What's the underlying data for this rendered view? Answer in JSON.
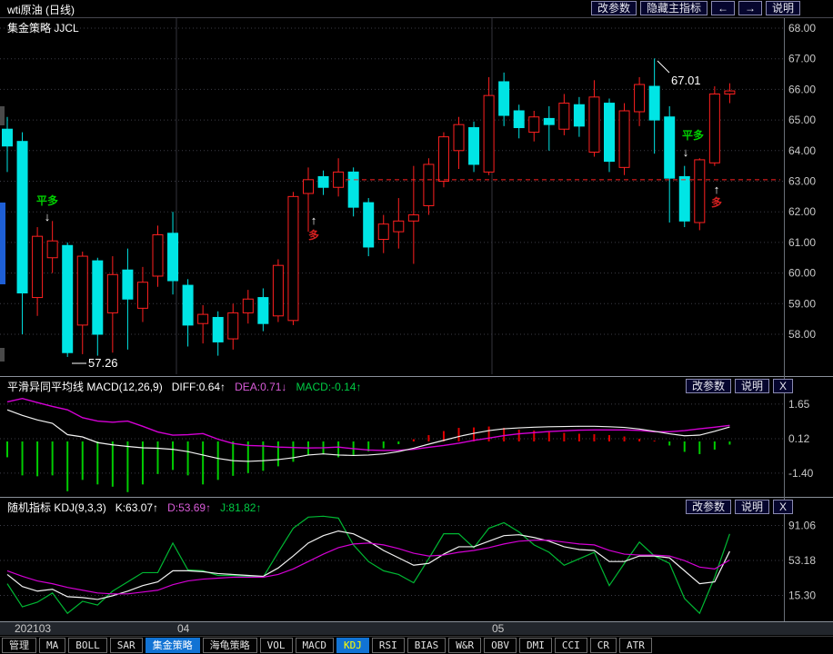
{
  "window": {
    "title": "wti原油 (日线)",
    "subtitle": "集金策略 JJCL"
  },
  "top_buttons": [
    {
      "label": "改参数"
    },
    {
      "label": "隐藏主指标"
    },
    {
      "label": "←"
    },
    {
      "label": "→"
    },
    {
      "label": "说明"
    }
  ],
  "macd_panel": {
    "title": "平滑异同平均线 MACD(12,26,9)",
    "diff_label": "DIFF:0.64↑",
    "dea_label": "DEA:0.71↓",
    "macd_label": "MACD:-0.14↑",
    "buttons": [
      "改参数",
      "说明",
      "X"
    ]
  },
  "kdj_panel": {
    "title": "随机指标 KDJ(9,3,3)",
    "k_label": "K:63.07↑",
    "d_label": "D:53.69↑",
    "j_label": "J:81.82↑",
    "buttons": [
      "改参数",
      "说明",
      "X"
    ]
  },
  "timeline": {
    "labels": [
      {
        "text": "202103",
        "x": 16
      },
      {
        "text": "04",
        "x": 195
      },
      {
        "text": "05",
        "x": 541
      }
    ]
  },
  "toolbar": {
    "items": [
      {
        "label": "管理"
      },
      {
        "label": "MA"
      },
      {
        "label": "BOLL"
      },
      {
        "label": "SAR"
      },
      {
        "label": "集金策略",
        "active": true
      },
      {
        "label": "海龟策略"
      },
      {
        "label": "VOL"
      },
      {
        "label": "MACD"
      },
      {
        "label": "KDJ",
        "active": true,
        "text_color": "#ffff00"
      },
      {
        "label": "RSI"
      },
      {
        "label": "BIAS"
      },
      {
        "label": "W&R"
      },
      {
        "label": "OBV"
      },
      {
        "label": "DMI"
      },
      {
        "label": "CCI"
      },
      {
        "label": "CR"
      },
      {
        "label": "ATR"
      }
    ]
  },
  "colors": {
    "up": "#ff2020",
    "down": "#00e5e5",
    "diff_line": "#f2f2f2",
    "dea_line": "#d400d4",
    "hist_pos": "#e00000",
    "hist_neg": "#00cc00",
    "k_line": "#f2f2f2",
    "d_line": "#d400d4",
    "j_line": "#00b833",
    "grid": "#3c3c46",
    "month_line": "#34343c",
    "axis_text": "#c8c8c8",
    "divider": "#8a9099",
    "signal_green": "#00cc00",
    "signal_red": "#d42020",
    "dashed_line": "#ff2020",
    "scroll_thumb": "#1e5fd6",
    "scroll_mark": "#4a4a4a"
  },
  "left_scrollbar": [
    {
      "y": 117,
      "h": 21,
      "kind": "mark"
    },
    {
      "y": 223,
      "h": 90,
      "kind": "thumb"
    },
    {
      "y": 383,
      "h": 15,
      "kind": "mark"
    }
  ],
  "chart_data": [
    {
      "type": "candlestick",
      "title": "wti原油 (日线)",
      "y_ticks": [
        "68.00",
        "67.00",
        "66.00",
        "65.00",
        "64.00",
        "63.00",
        "62.00",
        "61.00",
        "60.00",
        "59.00",
        "58.00"
      ],
      "y_tick_values": [
        68,
        67,
        66,
        65,
        64,
        63,
        62,
        61,
        60,
        59,
        58
      ],
      "x_tick_labels": [
        "202103",
        "04",
        "05"
      ],
      "month_lines_x": [
        194,
        541
      ],
      "ohlc": [
        [
          64.7,
          65.1,
          63.3,
          64.15
        ],
        [
          64.3,
          64.6,
          58.0,
          59.35
        ],
        [
          59.2,
          61.5,
          58.6,
          61.2
        ],
        [
          60.5,
          61.7,
          60.0,
          61.05
        ],
        [
          60.9,
          61.0,
          57.26,
          57.4
        ],
        [
          58.3,
          60.7,
          57.35,
          60.55
        ],
        [
          60.4,
          60.5,
          57.3,
          58.0
        ],
        [
          58.7,
          60.55,
          57.4,
          59.95
        ],
        [
          60.1,
          60.8,
          57.5,
          59.15
        ],
        [
          58.85,
          60.2,
          58.4,
          59.7
        ],
        [
          59.9,
          61.55,
          59.55,
          61.25
        ],
        [
          61.3,
          62.0,
          59.3,
          59.75
        ],
        [
          59.6,
          59.8,
          57.6,
          58.3
        ],
        [
          58.35,
          58.95,
          57.7,
          58.65
        ],
        [
          58.55,
          58.75,
          57.3,
          57.75
        ],
        [
          57.85,
          59.0,
          57.5,
          58.7
        ],
        [
          58.7,
          59.45,
          58.35,
          59.15
        ],
        [
          59.2,
          59.5,
          58.1,
          58.35
        ],
        [
          58.6,
          60.45,
          58.4,
          60.25
        ],
        [
          58.45,
          62.65,
          58.3,
          62.5
        ],
        [
          62.6,
          63.45,
          61.35,
          63.05
        ],
        [
          63.15,
          63.35,
          62.55,
          62.8
        ],
        [
          62.8,
          63.75,
          62.5,
          63.3
        ],
        [
          63.3,
          63.45,
          61.85,
          62.15
        ],
        [
          62.3,
          62.45,
          60.55,
          60.85
        ],
        [
          61.1,
          61.9,
          60.65,
          61.6
        ],
        [
          61.35,
          62.45,
          60.8,
          61.7
        ],
        [
          61.7,
          63.5,
          60.3,
          61.9
        ],
        [
          62.2,
          63.75,
          61.9,
          63.55
        ],
        [
          63.0,
          64.6,
          62.8,
          64.45
        ],
        [
          64.0,
          65.1,
          63.4,
          64.85
        ],
        [
          64.75,
          64.95,
          63.3,
          63.55
        ],
        [
          63.3,
          66.4,
          63.2,
          65.8
        ],
        [
          66.25,
          66.55,
          64.8,
          65.15
        ],
        [
          65.3,
          65.5,
          64.4,
          64.75
        ],
        [
          64.6,
          65.3,
          64.3,
          65.1
        ],
        [
          65.05,
          65.45,
          64.0,
          64.85
        ],
        [
          64.7,
          65.85,
          64.5,
          65.55
        ],
        [
          65.5,
          65.75,
          64.45,
          64.8
        ],
        [
          63.95,
          66.3,
          63.8,
          65.75
        ],
        [
          65.55,
          65.7,
          63.3,
          63.65
        ],
        [
          63.45,
          65.55,
          63.2,
          65.3
        ],
        [
          65.27,
          66.4,
          64.8,
          66.16
        ],
        [
          66.1,
          67.01,
          63.9,
          65.0
        ],
        [
          65.1,
          65.45,
          61.65,
          63.1
        ],
        [
          63.15,
          63.5,
          61.5,
          61.7
        ],
        [
          61.65,
          63.75,
          61.4,
          63.7
        ],
        [
          63.6,
          66.1,
          63.5,
          65.85
        ],
        [
          65.85,
          66.2,
          65.55,
          65.95
        ]
      ],
      "signal_line": {
        "price": 63.05,
        "x1": 380,
        "x2": 858
      },
      "annotations": [
        {
          "kind": "signal",
          "label": "平多",
          "color": "green",
          "arrow": "down",
          "x": 52,
          "ax": 52,
          "label_y": 225,
          "arrow_y": 243
        },
        {
          "kind": "signal",
          "label": "多",
          "color": "red",
          "arrow": "up",
          "x": 345,
          "ax": 345,
          "label_y": 263,
          "arrow_y": 247
        },
        {
          "kind": "signal",
          "label": "平多",
          "color": "green",
          "arrow": "down",
          "x": 762,
          "ax": 754,
          "label_y": 153,
          "arrow_y": 172
        },
        {
          "kind": "signal",
          "label": "多",
          "color": "red",
          "arrow": "up",
          "x": 788,
          "ax": 788,
          "label_y": 227,
          "arrow_y": 213
        },
        {
          "kind": "price-low",
          "label": "57.26",
          "x": 97,
          "y": 404,
          "line": [
            79,
            95,
            400
          ]
        },
        {
          "kind": "price-high",
          "label": "67.01",
          "x": 738,
          "y": 93,
          "line": [
            723,
            67,
            736,
            80
          ]
        }
      ]
    },
    {
      "type": "bar+line",
      "name": "MACD",
      "params": "12,26,9",
      "y_ticks": [
        "1.65",
        "0.12",
        "-1.40"
      ],
      "y_tick_values": [
        1.65,
        0.12,
        -1.4
      ],
      "diff": [
        1.4,
        1.15,
        0.95,
        0.8,
        0.3,
        0.2,
        -0.05,
        -0.15,
        -0.22,
        -0.28,
        -0.3,
        -0.35,
        -0.45,
        -0.6,
        -0.75,
        -0.85,
        -0.88,
        -0.85,
        -0.8,
        -0.72,
        -0.6,
        -0.55,
        -0.6,
        -0.62,
        -0.6,
        -0.55,
        -0.45,
        -0.3,
        -0.12,
        0.05,
        0.22,
        0.36,
        0.48,
        0.56,
        0.6,
        0.63,
        0.65,
        0.66,
        0.67,
        0.67,
        0.65,
        0.62,
        0.55,
        0.45,
        0.34,
        0.25,
        0.28,
        0.45,
        0.64
      ],
      "dea": [
        1.75,
        1.9,
        1.72,
        1.55,
        1.4,
        1.05,
        0.9,
        0.85,
        0.9,
        0.67,
        0.42,
        0.28,
        0.3,
        0.35,
        0.1,
        -0.09,
        -0.18,
        -0.2,
        -0.25,
        -0.27,
        -0.29,
        -0.28,
        -0.25,
        -0.32,
        -0.38,
        -0.4,
        -0.39,
        -0.35,
        -0.26,
        -0.18,
        -0.08,
        0.05,
        0.15,
        0.26,
        0.34,
        0.39,
        0.44,
        0.47,
        0.5,
        0.51,
        0.51,
        0.51,
        0.49,
        0.43,
        0.43,
        0.48,
        0.56,
        0.63,
        0.71
      ],
      "hist_rule": "2*(diff-dea)",
      "last_values": {
        "diff": 0.64,
        "dea": 0.71,
        "macd": -0.14
      }
    },
    {
      "type": "line",
      "name": "KDJ",
      "params": "9,3,3",
      "y_ticks": [
        "91.06",
        "53.18",
        "15.30"
      ],
      "y_tick_values": [
        91.06,
        53.18,
        15.3
      ],
      "k": [
        38,
        25,
        20,
        22,
        14,
        13,
        11,
        15,
        20,
        26,
        30,
        42,
        42,
        41,
        39,
        38,
        37,
        36,
        45,
        58,
        72,
        80,
        85,
        82,
        74,
        64,
        56,
        48,
        50,
        60,
        68,
        68,
        74,
        80,
        81,
        78,
        74,
        68,
        65,
        64,
        52,
        52,
        58,
        58,
        56,
        42,
        28,
        30,
        63.07
      ],
      "d": [
        42,
        36,
        31,
        28,
        24,
        21,
        18,
        17,
        17,
        19,
        21,
        27,
        31,
        33,
        34,
        35,
        35,
        35,
        38,
        44,
        52,
        60,
        67,
        71,
        72,
        70,
        66,
        61,
        58,
        59,
        62,
        64,
        67,
        71,
        74,
        75,
        75,
        73,
        71,
        70,
        64,
        60,
        59,
        59,
        58,
        53,
        46,
        44,
        53.69
      ],
      "j": [
        28,
        3,
        8,
        18,
        -4,
        9,
        5,
        20,
        30,
        40,
        40,
        72,
        43,
        42,
        37,
        37,
        36,
        35,
        62,
        88,
        100,
        101,
        99,
        70,
        52,
        42,
        38,
        29,
        55,
        82,
        82,
        67,
        88,
        94,
        84,
        70,
        62,
        48,
        55,
        62,
        26,
        50,
        73,
        58,
        50,
        12,
        -4,
        35,
        81.82
      ],
      "last_values": {
        "k": 63.07,
        "d": 53.69,
        "j": 81.82
      }
    }
  ]
}
